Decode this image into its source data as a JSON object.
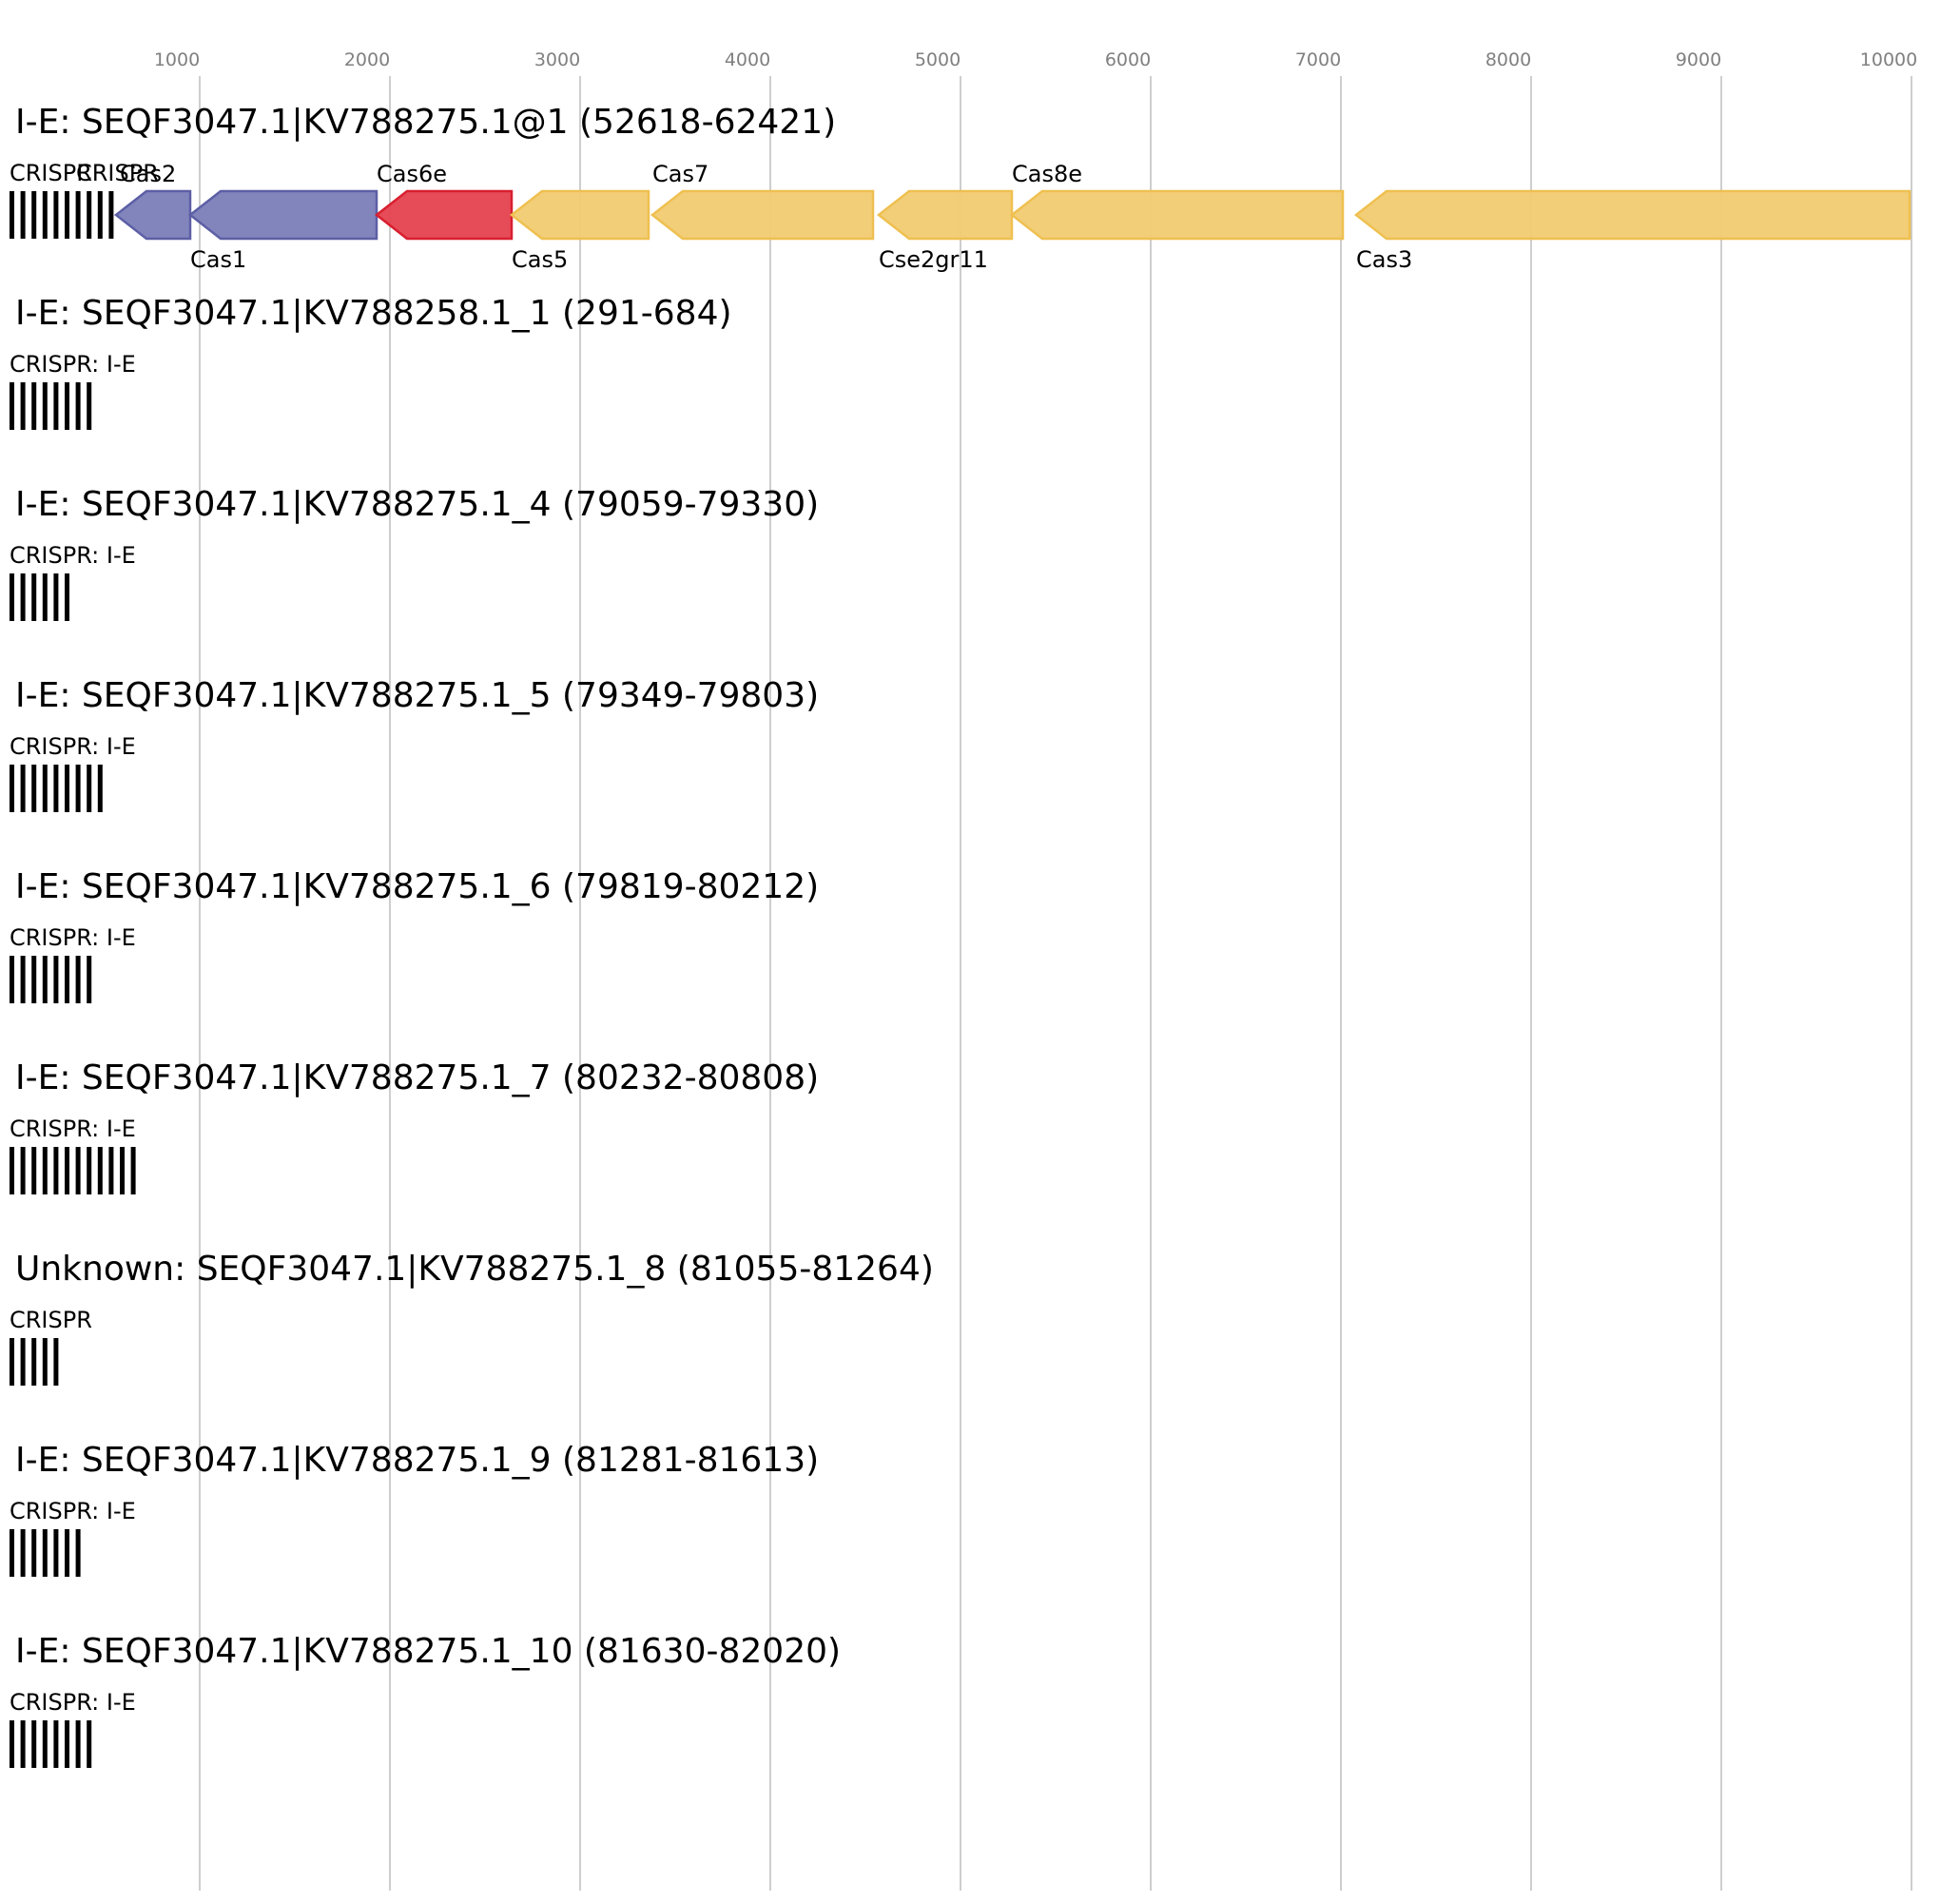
{
  "chart_data": {
    "type": "gene-map",
    "axis": {
      "ticks": [
        1000,
        2000,
        3000,
        4000,
        5000,
        6000,
        7000,
        8000,
        9000,
        10000
      ],
      "tick_labels": [
        "1000",
        "2000",
        "3000",
        "4000",
        "5000",
        "6000",
        "7000",
        "8000",
        "9000",
        "10000"
      ],
      "xlim": [
        0,
        10150
      ],
      "grid": true
    },
    "colors": {
      "cas_adaptation": "#7b7eb8",
      "cas_adaptation_edge": "#5c5fa5",
      "cas6": "#e5414f",
      "cas6_edge": "#d91f2f",
      "interference": "#f1cb72",
      "interference_edge": "#efc050",
      "grid": "#bdbdbd",
      "tick_text": "#808080",
      "crispr_bar": "#000000"
    },
    "tracks": [
      {
        "title": "I-E: SEQF3047.1|KV788275.1@1 (52618-62421)",
        "crisprs": [
          {
            "label": "CRISPR",
            "start": 0,
            "end": 500,
            "repeats": 10
          },
          {
            "label": "CRISPR",
            "start": 420,
            "end": 420,
            "repeats": 0
          }
        ],
        "genes": [
          {
            "name": "Cas2",
            "start": 560,
            "end": 950,
            "strand": "-",
            "family": "cas_adaptation",
            "label_pos": "top"
          },
          {
            "name": "Cas1",
            "start": 950,
            "end": 1930,
            "strand": "-",
            "family": "cas_adaptation",
            "label_pos": "bottom"
          },
          {
            "name": "Cas6e",
            "start": 1930,
            "end": 2640,
            "strand": "-",
            "family": "cas6",
            "label_pos": "top"
          },
          {
            "name": "Cas5",
            "start": 2640,
            "end": 3360,
            "strand": "-",
            "family": "interference",
            "label_pos": "bottom"
          },
          {
            "name": "Cas7",
            "start": 3380,
            "end": 4540,
            "strand": "-",
            "family": "interference",
            "label_pos": "top"
          },
          {
            "name": "Cse2gr11",
            "start": 4570,
            "end": 5270,
            "strand": "-",
            "family": "interference",
            "label_pos": "bottom"
          },
          {
            "name": "Cas8e",
            "start": 5270,
            "end": 7010,
            "strand": "-",
            "family": "interference",
            "label_pos": "top"
          },
          {
            "name": "Cas3",
            "start": 7080,
            "end": 9990,
            "strand": "-",
            "family": "interference",
            "label_pos": "bottom"
          }
        ]
      },
      {
        "title": "I-E: SEQF3047.1|KV788258.1_1 (291-684)",
        "crisprs": [
          {
            "label": "CRISPR: I-E",
            "start": 0,
            "end": 394,
            "repeats": 8
          }
        ],
        "genes": []
      },
      {
        "title": "I-E: SEQF3047.1|KV788275.1_4 (79059-79330)",
        "crisprs": [
          {
            "label": "CRISPR: I-E",
            "start": 0,
            "end": 272,
            "repeats": 6
          }
        ],
        "genes": []
      },
      {
        "title": "I-E: SEQF3047.1|KV788275.1_5 (79349-79803)",
        "crisprs": [
          {
            "label": "CRISPR: I-E",
            "start": 0,
            "end": 455,
            "repeats": 9
          }
        ],
        "genes": []
      },
      {
        "title": "I-E: SEQF3047.1|KV788275.1_6 (79819-80212)",
        "crisprs": [
          {
            "label": "CRISPR: I-E",
            "start": 0,
            "end": 394,
            "repeats": 8
          }
        ],
        "genes": []
      },
      {
        "title": "I-E: SEQF3047.1|KV788275.1_7 (80232-80808)",
        "crisprs": [
          {
            "label": "CRISPR: I-E",
            "start": 0,
            "end": 577,
            "repeats": 12
          }
        ],
        "genes": []
      },
      {
        "title": "Unknown: SEQF3047.1|KV788275.1_8 (81055-81264)",
        "crisprs": [
          {
            "label": "CRISPR",
            "start": 0,
            "end": 210,
            "repeats": 5
          }
        ],
        "genes": []
      },
      {
        "title": "I-E: SEQF3047.1|KV788275.1_9 (81281-81613)",
        "crisprs": [
          {
            "label": "CRISPR: I-E",
            "start": 0,
            "end": 333,
            "repeats": 7
          }
        ],
        "genes": []
      },
      {
        "title": "I-E: SEQF3047.1|KV788275.1_10 (81630-82020)",
        "crisprs": [
          {
            "label": "CRISPR: I-E",
            "start": 0,
            "end": 391,
            "repeats": 8
          }
        ],
        "genes": []
      }
    ]
  }
}
